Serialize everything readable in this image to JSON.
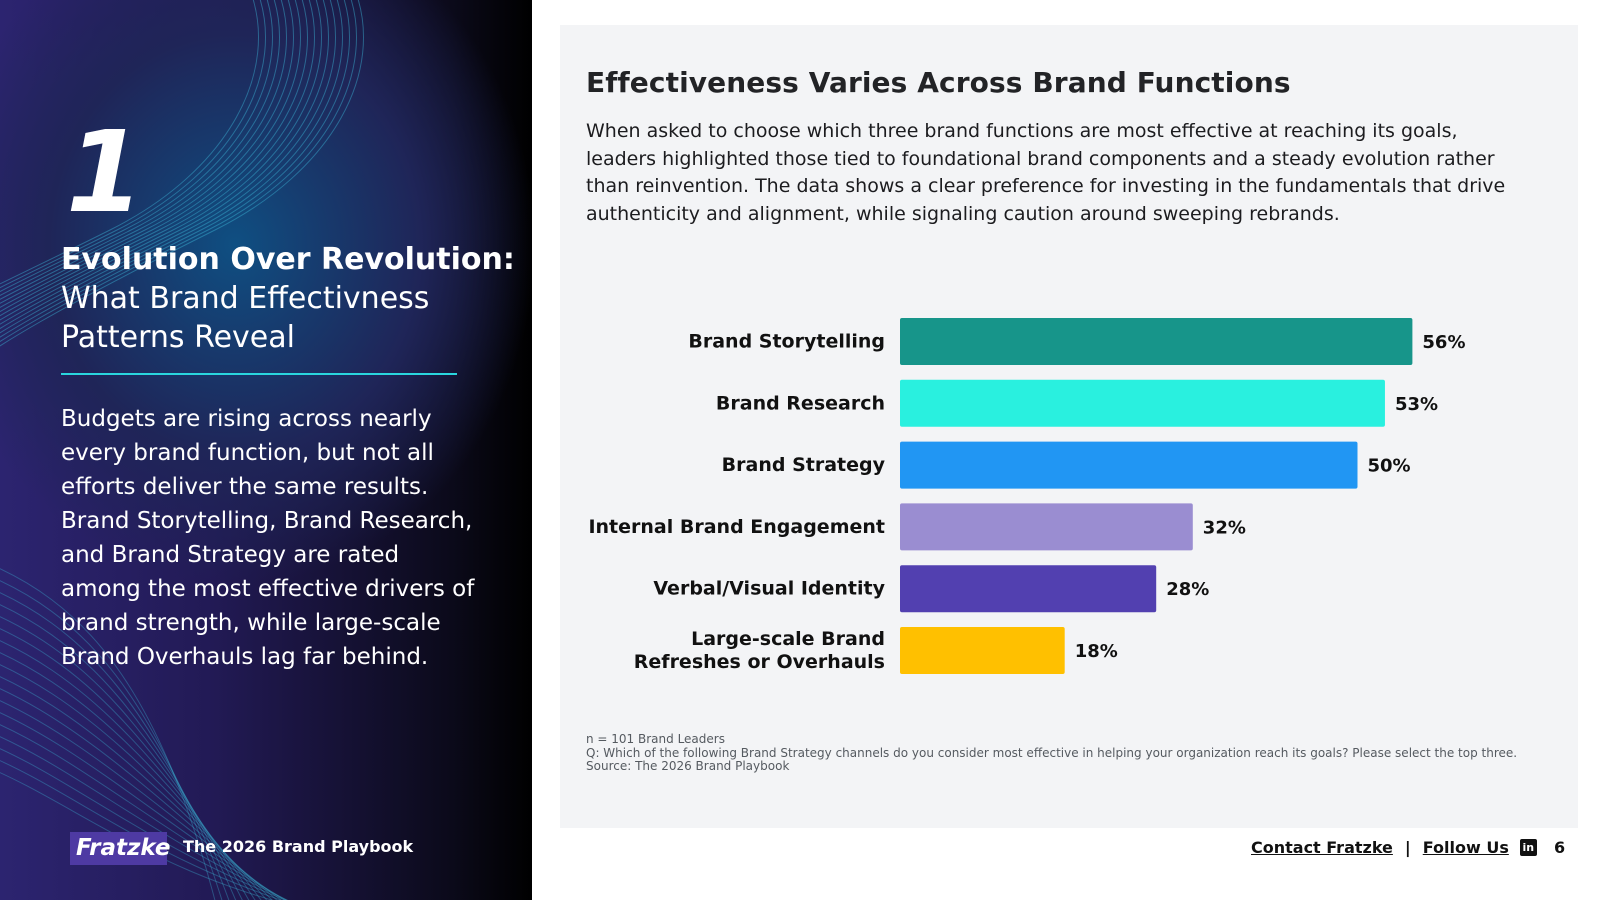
{
  "left_panel": {
    "chapter_number": "1",
    "title_bold": "Evolution Over Revolution:",
    "title_regular": "What Brand Effectivness Patterns Reveal",
    "body": "Budgets are rising across nearly every brand function, but not all efforts deliver the same results. Brand Storytelling, Brand Research, and Brand Strategy are rated among the most effective drivers of brand strength, while large-scale Brand Overhauls lag far behind.",
    "logo_text": "Fratzke",
    "playbook_label": "The 2026 Brand Playbook"
  },
  "main": {
    "heading": "Effectiveness Varies Across Brand Functions",
    "intro": "When asked to choose which three brand functions are most effective at reaching its goals, leaders highlighted those tied to foundational brand components and a steady evolution rather than reinvention. The data shows a clear preference for investing in the fundamentals that drive authenticity and alignment, while signaling caution around sweeping rebrands.",
    "notes": {
      "sample": "n = 101 Brand Leaders",
      "question": "Q: Which of the following Brand Strategy channels do you consider most effective in helping your organization reach its goals? Please select the top three.",
      "source": "Source: The 2026 Brand Playbook"
    }
  },
  "chart_data": {
    "type": "bar",
    "orientation": "horizontal",
    "title": "",
    "xlabel": "",
    "ylabel": "",
    "xlim": [
      0,
      100
    ],
    "value_suffix": "%",
    "categories": [
      [
        "Brand Storytelling"
      ],
      [
        "Brand Research"
      ],
      [
        "Brand Strategy"
      ],
      [
        "Internal Brand Engagement"
      ],
      [
        "Verbal/Visual Identity"
      ],
      [
        "Large-scale Brand",
        "Refreshes or Overhauls"
      ]
    ],
    "values": [
      56,
      53,
      50,
      32,
      28,
      18
    ],
    "colors": [
      "#17958a",
      "#29f0df",
      "#2196f3",
      "#9a8dd1",
      "#5240b0",
      "#ffc000"
    ]
  },
  "footer": {
    "contact_label": "Contact Fratzke",
    "separator": "|",
    "follow_label": "Follow Us",
    "linkedin_glyph": "in",
    "page_number": "6"
  }
}
